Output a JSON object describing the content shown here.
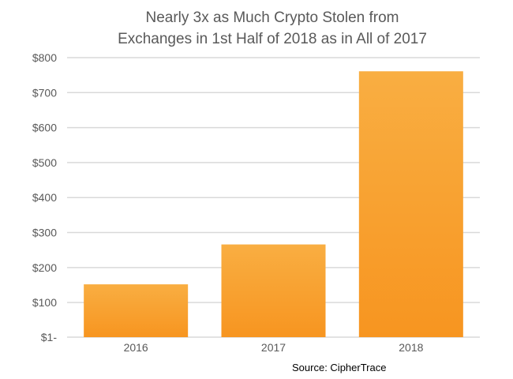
{
  "title_line1": "Nearly 3x as Much Crypto Stolen from",
  "title_line2": "Exchanges in 1st Half of 2018 as in All of 2017",
  "source": "Source: CipherTrace",
  "chart_data": {
    "type": "bar",
    "title": "Nearly 3x as Much Crypto Stolen from Exchanges in 1st Half of 2018 as in All of 2017",
    "categories": [
      "2016",
      "2017",
      "2018"
    ],
    "values": [
      152,
      266,
      761
    ],
    "y_tick_values": [
      1,
      100,
      200,
      300,
      400,
      500,
      600,
      700,
      800
    ],
    "y_tick_labels": [
      "$1-",
      "$100",
      "$200",
      "$300",
      "$400",
      "$500",
      "$600",
      "$700",
      "$800"
    ],
    "ylim": [
      1,
      800
    ],
    "xlabel": "",
    "ylabel": "",
    "grid": true,
    "legend": "none",
    "colors": {
      "bar_top": "#F9AE42",
      "bar_bottom": "#F79520",
      "grid": "#D9D9D9",
      "axis_text": "#595959"
    }
  }
}
